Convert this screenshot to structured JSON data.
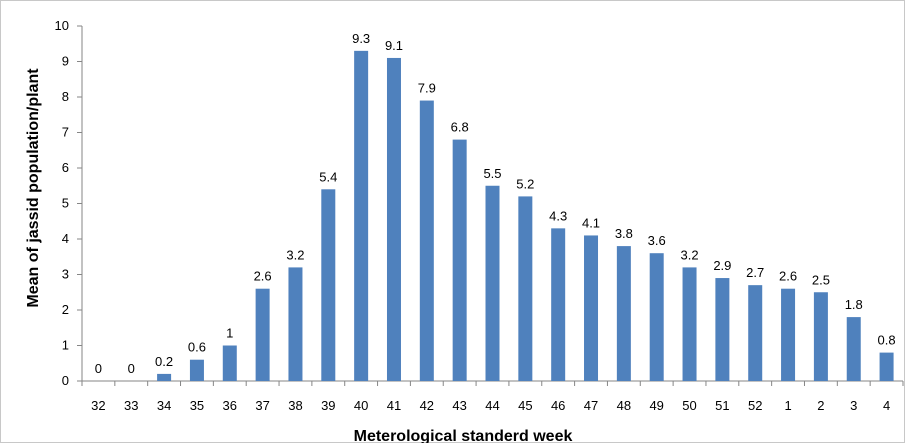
{
  "chart_data": {
    "type": "bar",
    "xlabel": "Meterological standerd week",
    "ylabel": "Mean of jassid population/plant",
    "ylim": [
      0,
      10
    ],
    "yticks": [
      0,
      1,
      2,
      3,
      4,
      5,
      6,
      7,
      8,
      9,
      10
    ],
    "grid": false,
    "legend": "none",
    "bar_color": "#4f81bd",
    "categories": [
      "32",
      "33",
      "34",
      "35",
      "36",
      "37",
      "38",
      "39",
      "40",
      "41",
      "42",
      "43",
      "44",
      "45",
      "46",
      "47",
      "48",
      "49",
      "50",
      "51",
      "52",
      "1",
      "2",
      "3",
      "4"
    ],
    "values": [
      0,
      0,
      0.2,
      0.6,
      1,
      2.6,
      3.2,
      5.4,
      9.3,
      9.1,
      7.9,
      6.8,
      5.5,
      5.2,
      4.3,
      4.1,
      3.8,
      3.6,
      3.2,
      2.9,
      2.7,
      2.6,
      2.5,
      1.8,
      0.8
    ],
    "data_labels": [
      "0",
      "0",
      "0.2",
      "0.6",
      "1",
      "2.6",
      "3.2",
      "5.4",
      "9.3",
      "9.1",
      "7.9",
      "6.8",
      "5.5",
      "5.2",
      "4.3",
      "4.1",
      "3.8",
      "3.6",
      "3.2",
      "2.9",
      "2.7",
      "2.6",
      "2.5",
      "1.8",
      "0.8"
    ]
  }
}
